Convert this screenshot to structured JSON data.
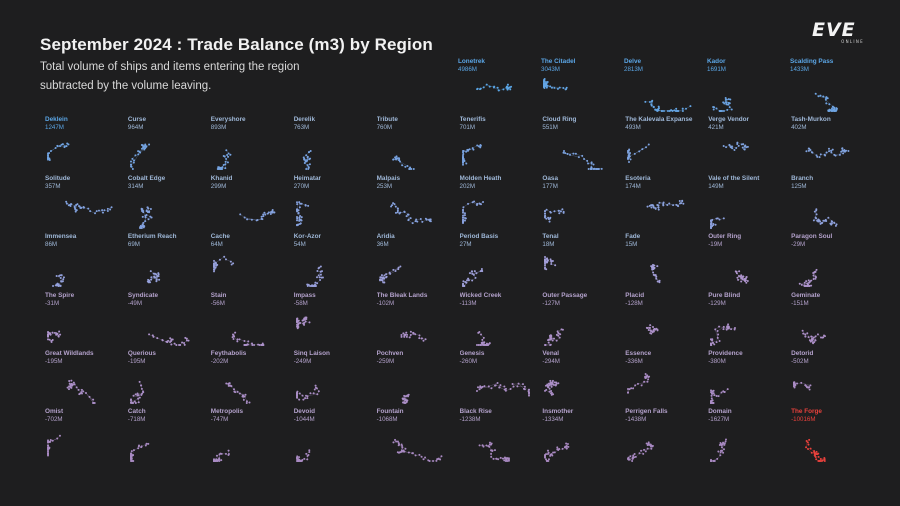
{
  "header": {
    "title": "September 2024 : Trade Balance (m3) by Region",
    "subtitle": "Total volume of ships and items entering the region subtracted by the volume leaving."
  },
  "logo": {
    "text": "EVE",
    "subtext": "ONLINE"
  },
  "colors": {
    "background": "#1e1e1f",
    "positive_high": "#5ba6e6",
    "neutral": "#b39ed6",
    "negative_mid": "#a888c0",
    "negative_extreme": "#e8413c",
    "label_positive": "#9fb8d8",
    "label_negative": "#b4a2cc"
  },
  "chart_data": {
    "type": "small-multiples",
    "unit": "m3",
    "regions": [
      {
        "name": "Lonetrek",
        "label": "4986M",
        "value": 4986
      },
      {
        "name": "The Citadel",
        "label": "3043M",
        "value": 3043
      },
      {
        "name": "Delve",
        "label": "2813M",
        "value": 2813
      },
      {
        "name": "Kador",
        "label": "1691M",
        "value": 1691
      },
      {
        "name": "Scalding Pass",
        "label": "1433M",
        "value": 1433
      },
      {
        "name": "Deklein",
        "label": "1247M",
        "value": 1247
      },
      {
        "name": "Curse",
        "label": "964M",
        "value": 964
      },
      {
        "name": "Everyshore",
        "label": "893M",
        "value": 893
      },
      {
        "name": "Derelik",
        "label": "763M",
        "value": 763
      },
      {
        "name": "Tribute",
        "label": "760M",
        "value": 760
      },
      {
        "name": "Tenerifis",
        "label": "701M",
        "value": 701
      },
      {
        "name": "Cloud Ring",
        "label": "551M",
        "value": 551
      },
      {
        "name": "The Kalevala Expanse",
        "label": "493M",
        "value": 493
      },
      {
        "name": "Verge Vendor",
        "label": "421M",
        "value": 421
      },
      {
        "name": "Tash-Murkon",
        "label": "402M",
        "value": 402
      },
      {
        "name": "Solitude",
        "label": "357M",
        "value": 357
      },
      {
        "name": "Cobalt Edge",
        "label": "314M",
        "value": 314
      },
      {
        "name": "Khanid",
        "label": "299M",
        "value": 299
      },
      {
        "name": "Heimatar",
        "label": "270M",
        "value": 270
      },
      {
        "name": "Malpais",
        "label": "253M",
        "value": 253
      },
      {
        "name": "Molden Heath",
        "label": "202M",
        "value": 202
      },
      {
        "name": "Oasa",
        "label": "177M",
        "value": 177
      },
      {
        "name": "Esoteria",
        "label": "174M",
        "value": 174
      },
      {
        "name": "Vale of the Silent",
        "label": "149M",
        "value": 149
      },
      {
        "name": "Branch",
        "label": "125M",
        "value": 125
      },
      {
        "name": "Immensea",
        "label": "86M",
        "value": 86
      },
      {
        "name": "Etherium Reach",
        "label": "69M",
        "value": 69
      },
      {
        "name": "Cache",
        "label": "64M",
        "value": 64
      },
      {
        "name": "Kor-Azor",
        "label": "54M",
        "value": 54
      },
      {
        "name": "Aridia",
        "label": "36M",
        "value": 36
      },
      {
        "name": "Period Basis",
        "label": "27M",
        "value": 27
      },
      {
        "name": "Tenal",
        "label": "18M",
        "value": 18
      },
      {
        "name": "Fade",
        "label": "15M",
        "value": 15
      },
      {
        "name": "Outer Ring",
        "label": "-19M",
        "value": -19
      },
      {
        "name": "Paragon Soul",
        "label": "-29M",
        "value": -29
      },
      {
        "name": "The Spire",
        "label": "-31M",
        "value": -31
      },
      {
        "name": "Syndicate",
        "label": "-49M",
        "value": -49
      },
      {
        "name": "Stain",
        "label": "-56M",
        "value": -56
      },
      {
        "name": "Impass",
        "label": "-58M",
        "value": -58
      },
      {
        "name": "The Bleak Lands",
        "label": "-102M",
        "value": -102
      },
      {
        "name": "Wicked Creek",
        "label": "-113M",
        "value": -113
      },
      {
        "name": "Outer Passage",
        "label": "-127M",
        "value": -127
      },
      {
        "name": "Placid",
        "label": "-128M",
        "value": -128
      },
      {
        "name": "Pure Blind",
        "label": "-129M",
        "value": -129
      },
      {
        "name": "Geminate",
        "label": "-151M",
        "value": -151
      },
      {
        "name": "Great Wildlands",
        "label": "-195M",
        "value": -195
      },
      {
        "name": "Querious",
        "label": "-195M",
        "value": -195
      },
      {
        "name": "Feythabolis",
        "label": "-202M",
        "value": -202
      },
      {
        "name": "Sinq Laison",
        "label": "-249M",
        "value": -249
      },
      {
        "name": "Pochven",
        "label": "-259M",
        "value": -259
      },
      {
        "name": "Genesis",
        "label": "-260M",
        "value": -260
      },
      {
        "name": "Venal",
        "label": "-294M",
        "value": -294
      },
      {
        "name": "Essence",
        "label": "-336M",
        "value": -336
      },
      {
        "name": "Providence",
        "label": "-380M",
        "value": -380
      },
      {
        "name": "Detorid",
        "label": "-502M",
        "value": -502
      },
      {
        "name": "Omist",
        "label": "-702M",
        "value": -702
      },
      {
        "name": "Catch",
        "label": "-718M",
        "value": -718
      },
      {
        "name": "Metropolis",
        "label": "-747M",
        "value": -747
      },
      {
        "name": "Devoid",
        "label": "-1044M",
        "value": -1044
      },
      {
        "name": "Fountain",
        "label": "-1068M",
        "value": -1068
      },
      {
        "name": "Black Rise",
        "label": "-1238M",
        "value": -1238
      },
      {
        "name": "Insmother",
        "label": "-1334M",
        "value": -1334
      },
      {
        "name": "Perrigen Falls",
        "label": "-1438M",
        "value": -1438
      },
      {
        "name": "Domain",
        "label": "-1627M",
        "value": -1627
      },
      {
        "name": "The Forge",
        "label": "-10016M",
        "value": -10016
      }
    ]
  }
}
